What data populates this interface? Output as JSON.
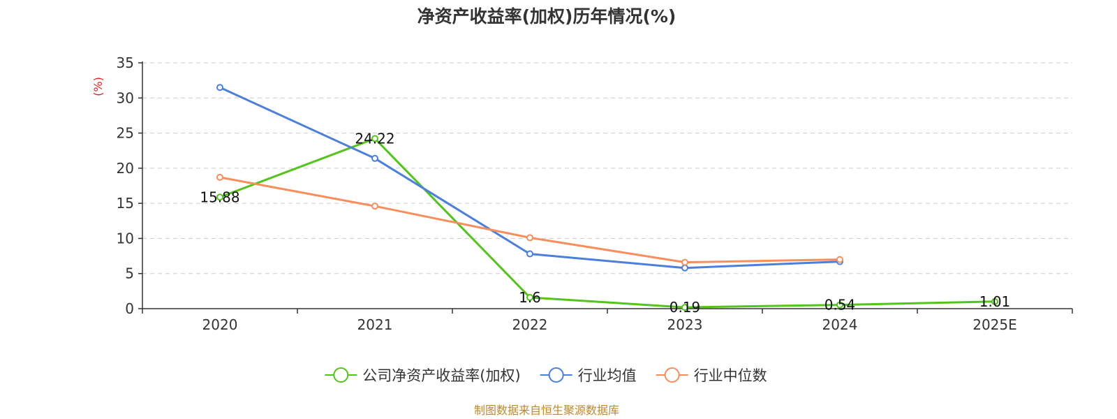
{
  "chart_data": {
    "type": "line",
    "title": "净资产收益率(加权)历年情况(%)",
    "ylabel": "(%)",
    "xlabel": "",
    "categories": [
      "2020",
      "2021",
      "2022",
      "2023",
      "2024",
      "2025E"
    ],
    "ylim": [
      0,
      35
    ],
    "yticks": [
      0,
      5,
      10,
      15,
      20,
      25,
      30,
      35
    ],
    "grid": true,
    "legend_position": "bottom-center",
    "series": [
      {
        "name": "公司净资产收益率(加权)",
        "color": "#52c41a",
        "values": [
          15.88,
          24.22,
          1.6,
          0.19,
          0.54,
          1.01
        ],
        "labels": [
          "15.88",
          "24.22",
          "1.6",
          "0.19",
          "0.54",
          "1.01"
        ],
        "show_labels": true
      },
      {
        "name": "行业均值",
        "color": "#4a7fdc",
        "values": [
          31.5,
          21.4,
          7.8,
          5.8,
          6.7,
          null
        ],
        "show_labels": false
      },
      {
        "name": "行业中位数",
        "color": "#f98d5b",
        "values": [
          18.7,
          14.6,
          10.1,
          6.6,
          7.0,
          null
        ],
        "show_labels": false
      }
    ],
    "source": "制图数据来自恒生聚源数据库"
  }
}
